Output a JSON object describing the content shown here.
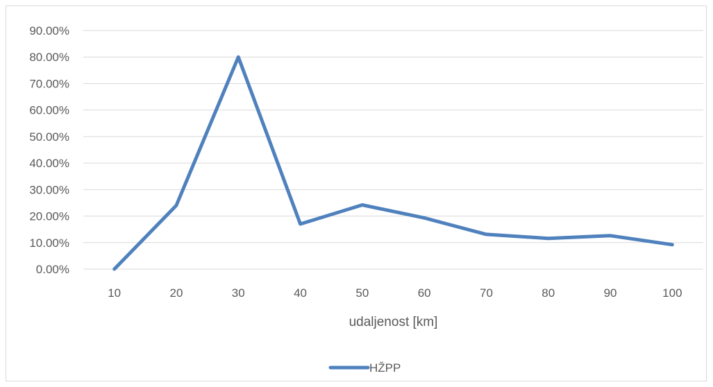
{
  "chart_data": {
    "type": "line",
    "x": [
      10,
      20,
      30,
      40,
      50,
      60,
      70,
      80,
      90,
      100
    ],
    "categories": [
      "10",
      "20",
      "30",
      "40",
      "50",
      "60",
      "70",
      "80",
      "90",
      "100"
    ],
    "series": [
      {
        "name": "HŽPP",
        "values": [
          0.0,
          24.0,
          80.0,
          17.0,
          24.2,
          19.3,
          13.1,
          11.6,
          12.6,
          9.2
        ],
        "color": "#4f81bd"
      }
    ],
    "y_ticks": [
      "0.00%",
      "10.00%",
      "20.00%",
      "30.00%",
      "40.00%",
      "50.00%",
      "60.00%",
      "70.00%",
      "80.00%",
      "90.00%"
    ],
    "ylim": [
      0,
      90
    ],
    "xlabel": "udaljenost [km]",
    "ylabel": "",
    "title": "",
    "grid": true,
    "legend_position": "bottom",
    "colors": {
      "gridline": "#d9d9d9",
      "text": "#595959",
      "frame": "#d9d9d9"
    }
  }
}
